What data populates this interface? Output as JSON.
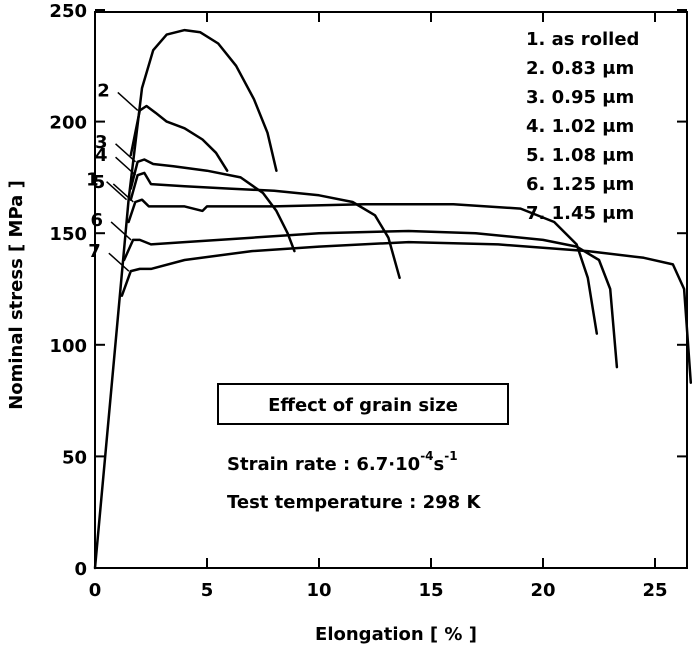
{
  "chart_data": {
    "type": "line",
    "xlabel": "Elongation [ % ]",
    "ylabel": "Nominal stress [ MPa ]",
    "xlim": [
      0,
      27
    ],
    "ylim": [
      0,
      250
    ],
    "xticks": [
      "0",
      "5",
      "10",
      "15",
      "20",
      "25"
    ],
    "yticks": [
      "0",
      "50",
      "100",
      "150",
      "200",
      "250"
    ],
    "legend_position": "top-right",
    "grid": false,
    "annotation": {
      "title": "Effect of grain size",
      "strain_rate_prefix": "Strain rate : 6.7·10",
      "strain_rate_exp1": "-4",
      "strain_rate_unit": "s",
      "strain_rate_exp2": "-1",
      "temperature": "Test temperature : 298 K"
    },
    "series": [
      {
        "id": "1",
        "name": "1. as rolled",
        "points": [
          [
            0,
            0
          ],
          [
            1.0,
            110
          ],
          [
            1.5,
            165
          ],
          [
            2.1,
            215
          ],
          [
            2.6,
            232
          ],
          [
            3.2,
            239
          ],
          [
            4.0,
            241
          ],
          [
            4.7,
            240
          ],
          [
            5.5,
            235
          ],
          [
            6.3,
            225
          ],
          [
            7.1,
            210
          ],
          [
            7.7,
            195
          ],
          [
            8.1,
            178
          ]
        ]
      },
      {
        "id": "2",
        "name": "2. 0.83 μm",
        "points": [
          [
            1.6,
            185
          ],
          [
            2.0,
            205
          ],
          [
            2.3,
            207
          ],
          [
            2.7,
            204
          ],
          [
            3.2,
            200
          ],
          [
            4.0,
            197
          ],
          [
            4.8,
            192
          ],
          [
            5.4,
            186
          ],
          [
            5.9,
            178
          ]
        ]
      },
      {
        "id": "3",
        "name": "3. 0.95 μm",
        "points": [
          [
            1.6,
            170
          ],
          [
            1.9,
            182
          ],
          [
            2.2,
            183
          ],
          [
            2.6,
            181
          ],
          [
            3.5,
            180
          ],
          [
            5.0,
            178
          ],
          [
            6.5,
            175
          ],
          [
            7.5,
            168
          ],
          [
            8.1,
            160
          ],
          [
            8.6,
            150
          ],
          [
            8.9,
            142
          ]
        ]
      },
      {
        "id": "4",
        "name": "4. 1.02 μm",
        "points": [
          [
            1.6,
            165
          ],
          [
            1.9,
            176
          ],
          [
            2.2,
            177
          ],
          [
            2.5,
            172
          ],
          [
            4.0,
            171
          ],
          [
            6.0,
            170
          ],
          [
            8.0,
            169
          ],
          [
            10.0,
            167
          ],
          [
            11.5,
            164
          ],
          [
            12.5,
            158
          ],
          [
            13.1,
            148
          ],
          [
            13.6,
            130
          ]
        ]
      },
      {
        "id": "5",
        "name": "5. 1.08 μm",
        "points": [
          [
            1.5,
            155
          ],
          [
            1.8,
            164
          ],
          [
            2.1,
            165
          ],
          [
            2.4,
            162
          ],
          [
            4.0,
            162
          ],
          [
            4.8,
            160
          ],
          [
            5.0,
            162
          ],
          [
            8.0,
            162
          ],
          [
            12.0,
            163
          ],
          [
            16.0,
            163
          ],
          [
            19.0,
            161
          ],
          [
            20.5,
            155
          ],
          [
            21.5,
            145
          ],
          [
            22.0,
            130
          ],
          [
            22.4,
            105
          ]
        ]
      },
      {
        "id": "6",
        "name": "6. 1.25 μm",
        "points": [
          [
            1.3,
            138
          ],
          [
            1.7,
            147
          ],
          [
            2.0,
            147
          ],
          [
            2.5,
            145
          ],
          [
            4.0,
            146
          ],
          [
            7.0,
            148
          ],
          [
            10.0,
            150
          ],
          [
            14.0,
            151
          ],
          [
            17.0,
            150
          ],
          [
            20.0,
            147
          ],
          [
            21.5,
            144
          ],
          [
            22.5,
            138
          ],
          [
            23.0,
            125
          ],
          [
            23.3,
            90
          ]
        ]
      },
      {
        "id": "7",
        "name": "7. 1.45 μm",
        "points": [
          [
            1.2,
            122
          ],
          [
            1.6,
            133
          ],
          [
            2.0,
            134
          ],
          [
            2.5,
            134
          ],
          [
            4.0,
            138
          ],
          [
            7.0,
            142
          ],
          [
            10.0,
            144
          ],
          [
            14.0,
            146
          ],
          [
            18.0,
            145
          ],
          [
            22.0,
            142
          ],
          [
            24.5,
            139
          ],
          [
            25.8,
            136
          ],
          [
            26.3,
            125
          ],
          [
            26.6,
            83
          ]
        ]
      }
    ]
  }
}
